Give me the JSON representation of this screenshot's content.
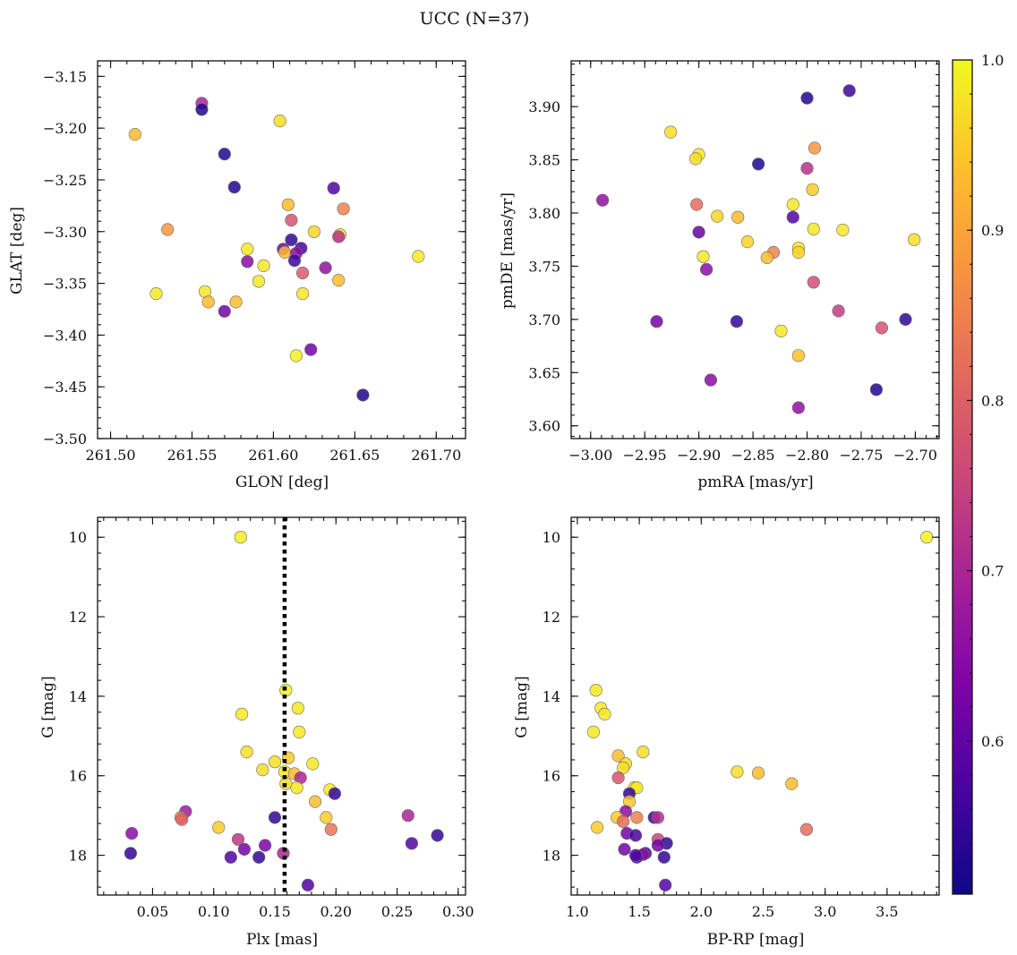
{
  "chart_data": {
    "title": "UCC (N=37)",
    "type": "scatter",
    "colorscale": "plasma",
    "colorbar": {
      "range": [
        0.51,
        1.0
      ],
      "ticks": [
        "0.6",
        "0.7",
        "0.8",
        "0.9",
        "1.0"
      ]
    },
    "panels": [
      {
        "id": "glon-glat",
        "type": "scatter",
        "xlabel": "GLON [deg]",
        "ylabel": "GLAT [deg]",
        "xlim": [
          261.492,
          261.718
        ],
        "ylim": [
          -3.5,
          -3.135
        ],
        "xticks": [
          261.5,
          261.55,
          261.6,
          261.65,
          261.7
        ],
        "xticklabels": [
          "261.50",
          "261.55",
          "261.60",
          "261.65",
          "261.70"
        ],
        "yticks": [
          -3.5,
          -3.45,
          -3.4,
          -3.35,
          -3.3,
          -3.25,
          -3.2,
          -3.15
        ],
        "yticklabels": [
          "−3.50",
          "−3.45",
          "−3.40",
          "−3.35",
          "−3.30",
          "−3.25",
          "−3.20",
          "−3.15"
        ],
        "invert_y": false,
        "points": [
          {
            "x": 261.515,
            "y": -3.206,
            "c": 0.93
          },
          {
            "x": 261.556,
            "y": -3.176,
            "c": 0.7
          },
          {
            "x": 261.556,
            "y": -3.182,
            "c": 0.53
          },
          {
            "x": 261.604,
            "y": -3.193,
            "c": 0.97
          },
          {
            "x": 261.57,
            "y": -3.225,
            "c": 0.53
          },
          {
            "x": 261.576,
            "y": -3.257,
            "c": 0.53
          },
          {
            "x": 261.637,
            "y": -3.258,
            "c": 0.58
          },
          {
            "x": 261.609,
            "y": -3.274,
            "c": 0.93
          },
          {
            "x": 261.643,
            "y": -3.278,
            "c": 0.85
          },
          {
            "x": 261.611,
            "y": -3.289,
            "c": 0.78
          },
          {
            "x": 261.535,
            "y": -3.298,
            "c": 0.88
          },
          {
            "x": 261.625,
            "y": -3.3,
            "c": 0.96
          },
          {
            "x": 261.641,
            "y": -3.303,
            "c": 0.98
          },
          {
            "x": 261.64,
            "y": -3.305,
            "c": 0.72
          },
          {
            "x": 261.611,
            "y": -3.308,
            "c": 0.55
          },
          {
            "x": 261.606,
            "y": -3.317,
            "c": 0.62
          },
          {
            "x": 261.617,
            "y": -3.316,
            "c": 0.57
          },
          {
            "x": 261.584,
            "y": -3.317,
            "c": 0.98
          },
          {
            "x": 261.607,
            "y": -3.32,
            "c": 0.93
          },
          {
            "x": 261.614,
            "y": -3.321,
            "c": 0.65
          },
          {
            "x": 261.613,
            "y": -3.328,
            "c": 0.56
          },
          {
            "x": 261.584,
            "y": -3.329,
            "c": 0.65
          },
          {
            "x": 261.594,
            "y": -3.333,
            "c": 0.98
          },
          {
            "x": 261.632,
            "y": -3.335,
            "c": 0.66
          },
          {
            "x": 261.618,
            "y": -3.34,
            "c": 0.79
          },
          {
            "x": 261.591,
            "y": -3.348,
            "c": 0.98
          },
          {
            "x": 261.64,
            "y": -3.347,
            "c": 0.93
          },
          {
            "x": 261.558,
            "y": -3.358,
            "c": 0.98
          },
          {
            "x": 261.528,
            "y": -3.36,
            "c": 0.98
          },
          {
            "x": 261.618,
            "y": -3.36,
            "c": 0.98
          },
          {
            "x": 261.56,
            "y": -3.368,
            "c": 0.93
          },
          {
            "x": 261.577,
            "y": -3.368,
            "c": 0.93
          },
          {
            "x": 261.57,
            "y": -3.377,
            "c": 0.62
          },
          {
            "x": 261.623,
            "y": -3.414,
            "c": 0.62
          },
          {
            "x": 261.614,
            "y": -3.42,
            "c": 0.99
          },
          {
            "x": 261.655,
            "y": -3.458,
            "c": 0.53
          },
          {
            "x": 261.689,
            "y": -3.324,
            "c": 0.98
          }
        ]
      },
      {
        "id": "pmra-pmde",
        "type": "scatter",
        "xlabel": "pmRA [mas/yr]",
        "ylabel": "pmDE [mas/yr]",
        "xlim": [
          -3.018,
          -2.678
        ],
        "ylim": [
          3.588,
          3.943
        ],
        "xticks": [
          -3.0,
          -2.95,
          -2.9,
          -2.85,
          -2.8,
          -2.75,
          -2.7
        ],
        "xticklabels": [
          "−3.00",
          "−2.95",
          "−2.90",
          "−2.85",
          "−2.80",
          "−2.75",
          "−2.70"
        ],
        "yticks": [
          3.6,
          3.65,
          3.7,
          3.75,
          3.8,
          3.85,
          3.9
        ],
        "yticklabels": [
          "3.60",
          "3.65",
          "3.70",
          "3.75",
          "3.80",
          "3.85",
          "3.90"
        ],
        "invert_y": false,
        "points": [
          {
            "x": -2.8,
            "y": 3.908,
            "c": 0.53
          },
          {
            "x": -2.761,
            "y": 3.915,
            "c": 0.56
          },
          {
            "x": -2.926,
            "y": 3.876,
            "c": 0.97
          },
          {
            "x": -2.793,
            "y": 3.861,
            "c": 0.88
          },
          {
            "x": -2.9,
            "y": 3.855,
            "c": 0.98
          },
          {
            "x": -2.903,
            "y": 3.851,
            "c": 0.97
          },
          {
            "x": -2.845,
            "y": 3.846,
            "c": 0.53
          },
          {
            "x": -2.8,
            "y": 3.842,
            "c": 0.72
          },
          {
            "x": -2.795,
            "y": 3.822,
            "c": 0.95
          },
          {
            "x": -2.989,
            "y": 3.812,
            "c": 0.66
          },
          {
            "x": -2.902,
            "y": 3.808,
            "c": 0.82
          },
          {
            "x": -2.813,
            "y": 3.808,
            "c": 0.98
          },
          {
            "x": -2.883,
            "y": 3.797,
            "c": 0.96
          },
          {
            "x": -2.864,
            "y": 3.796,
            "c": 0.93
          },
          {
            "x": -2.813,
            "y": 3.796,
            "c": 0.58
          },
          {
            "x": -2.794,
            "y": 3.785,
            "c": 0.98
          },
          {
            "x": -2.767,
            "y": 3.784,
            "c": 0.98
          },
          {
            "x": -2.9,
            "y": 3.782,
            "c": 0.6
          },
          {
            "x": -2.701,
            "y": 3.775,
            "c": 0.97
          },
          {
            "x": -2.855,
            "y": 3.773,
            "c": 0.96
          },
          {
            "x": -2.808,
            "y": 3.767,
            "c": 0.98
          },
          {
            "x": -2.831,
            "y": 3.763,
            "c": 0.85
          },
          {
            "x": -2.808,
            "y": 3.763,
            "c": 0.96
          },
          {
            "x": -2.896,
            "y": 3.759,
            "c": 0.98
          },
          {
            "x": -2.837,
            "y": 3.758,
            "c": 0.93
          },
          {
            "x": -2.893,
            "y": 3.747,
            "c": 0.65
          },
          {
            "x": -2.794,
            "y": 3.735,
            "c": 0.77
          },
          {
            "x": -2.771,
            "y": 3.708,
            "c": 0.74
          },
          {
            "x": -2.939,
            "y": 3.698,
            "c": 0.62
          },
          {
            "x": -2.865,
            "y": 3.698,
            "c": 0.55
          },
          {
            "x": -2.709,
            "y": 3.7,
            "c": 0.55
          },
          {
            "x": -2.731,
            "y": 3.692,
            "c": 0.78
          },
          {
            "x": -2.824,
            "y": 3.689,
            "c": 0.98
          },
          {
            "x": -2.808,
            "y": 3.666,
            "c": 0.94
          },
          {
            "x": -2.889,
            "y": 3.643,
            "c": 0.65
          },
          {
            "x": -2.736,
            "y": 3.634,
            "c": 0.53
          },
          {
            "x": -2.808,
            "y": 3.617,
            "c": 0.66
          }
        ]
      },
      {
        "id": "plx-g",
        "type": "scatter",
        "xlabel": "Plx [mas]",
        "ylabel": "G [mag]",
        "xlim": [
          0.005,
          0.306
        ],
        "ylim": [
          9.5,
          19.0
        ],
        "xticks": [
          0.05,
          0.1,
          0.15,
          0.2,
          0.25,
          0.3
        ],
        "xticklabels": [
          "0.05",
          "0.10",
          "0.15",
          "0.20",
          "0.25",
          "0.30"
        ],
        "yticks": [
          10,
          12,
          14,
          16,
          18
        ],
        "yticklabels": [
          "10",
          "12",
          "14",
          "16",
          "18"
        ],
        "invert_y": true,
        "vline": {
          "x": 0.158,
          "style": "dotted"
        },
        "points": [
          {
            "x": 0.122,
            "y": 10.0,
            "c": 0.99
          },
          {
            "x": 0.123,
            "y": 14.45,
            "c": 0.98
          },
          {
            "x": 0.159,
            "y": 13.85,
            "c": 0.99
          },
          {
            "x": 0.169,
            "y": 14.3,
            "c": 0.98
          },
          {
            "x": 0.17,
            "y": 14.9,
            "c": 0.98
          },
          {
            "x": 0.127,
            "y": 15.4,
            "c": 0.97
          },
          {
            "x": 0.161,
            "y": 15.55,
            "c": 0.95
          },
          {
            "x": 0.15,
            "y": 15.65,
            "c": 0.97
          },
          {
            "x": 0.181,
            "y": 15.7,
            "c": 0.98
          },
          {
            "x": 0.14,
            "y": 15.85,
            "c": 0.97
          },
          {
            "x": 0.158,
            "y": 15.9,
            "c": 0.98
          },
          {
            "x": 0.166,
            "y": 15.95,
            "c": 0.93
          },
          {
            "x": 0.171,
            "y": 16.05,
            "c": 0.7
          },
          {
            "x": 0.159,
            "y": 16.2,
            "c": 0.97
          },
          {
            "x": 0.168,
            "y": 16.3,
            "c": 0.98
          },
          {
            "x": 0.195,
            "y": 16.35,
            "c": 0.98
          },
          {
            "x": 0.199,
            "y": 16.45,
            "c": 0.55
          },
          {
            "x": 0.183,
            "y": 16.65,
            "c": 0.93
          },
          {
            "x": 0.077,
            "y": 16.9,
            "c": 0.68
          },
          {
            "x": 0.259,
            "y": 17.0,
            "c": 0.7
          },
          {
            "x": 0.073,
            "y": 17.05,
            "c": 0.85
          },
          {
            "x": 0.074,
            "y": 17.1,
            "c": 0.8
          },
          {
            "x": 0.15,
            "y": 17.05,
            "c": 0.55
          },
          {
            "x": 0.192,
            "y": 17.05,
            "c": 0.95
          },
          {
            "x": 0.104,
            "y": 17.3,
            "c": 0.95
          },
          {
            "x": 0.196,
            "y": 17.35,
            "c": 0.83
          },
          {
            "x": 0.033,
            "y": 17.45,
            "c": 0.65
          },
          {
            "x": 0.283,
            "y": 17.5,
            "c": 0.55
          },
          {
            "x": 0.12,
            "y": 17.6,
            "c": 0.73
          },
          {
            "x": 0.262,
            "y": 17.7,
            "c": 0.58
          },
          {
            "x": 0.142,
            "y": 17.75,
            "c": 0.63
          },
          {
            "x": 0.125,
            "y": 17.85,
            "c": 0.62
          },
          {
            "x": 0.157,
            "y": 17.95,
            "c": 0.7
          },
          {
            "x": 0.032,
            "y": 17.95,
            "c": 0.55
          },
          {
            "x": 0.114,
            "y": 18.05,
            "c": 0.58
          },
          {
            "x": 0.137,
            "y": 18.05,
            "c": 0.55
          },
          {
            "x": 0.177,
            "y": 18.75,
            "c": 0.58
          }
        ]
      },
      {
        "id": "bprp-g",
        "type": "scatter",
        "xlabel": "BP-RP [mag]",
        "ylabel": "G [mag]",
        "xlim": [
          0.95,
          3.92
        ],
        "ylim": [
          9.5,
          19.0
        ],
        "xticks": [
          1.0,
          1.5,
          2.0,
          2.5,
          3.0,
          3.5
        ],
        "xticklabels": [
          "1.0",
          "1.5",
          "2.0",
          "2.5",
          "3.0",
          "3.5"
        ],
        "yticks": [
          10,
          12,
          14,
          16,
          18
        ],
        "yticklabels": [
          "10",
          "12",
          "14",
          "16",
          "18"
        ],
        "invert_y": true,
        "points": [
          {
            "x": 3.82,
            "y": 10.0,
            "c": 0.99
          },
          {
            "x": 1.15,
            "y": 13.85,
            "c": 0.98
          },
          {
            "x": 1.19,
            "y": 14.3,
            "c": 0.98
          },
          {
            "x": 1.22,
            "y": 14.45,
            "c": 0.98
          },
          {
            "x": 1.13,
            "y": 14.9,
            "c": 0.98
          },
          {
            "x": 1.53,
            "y": 15.4,
            "c": 0.97
          },
          {
            "x": 1.33,
            "y": 15.5,
            "c": 0.93
          },
          {
            "x": 1.39,
            "y": 15.7,
            "c": 0.97
          },
          {
            "x": 1.37,
            "y": 15.8,
            "c": 0.97
          },
          {
            "x": 2.29,
            "y": 15.9,
            "c": 0.97
          },
          {
            "x": 2.46,
            "y": 15.93,
            "c": 0.93
          },
          {
            "x": 1.33,
            "y": 16.05,
            "c": 0.78
          },
          {
            "x": 2.73,
            "y": 16.2,
            "c": 0.93
          },
          {
            "x": 1.46,
            "y": 16.3,
            "c": 0.98
          },
          {
            "x": 1.48,
            "y": 16.3,
            "c": 0.98
          },
          {
            "x": 1.42,
            "y": 16.45,
            "c": 0.55
          },
          {
            "x": 1.42,
            "y": 16.65,
            "c": 0.95
          },
          {
            "x": 1.39,
            "y": 16.9,
            "c": 0.65
          },
          {
            "x": 1.32,
            "y": 17.05,
            "c": 0.95
          },
          {
            "x": 1.48,
            "y": 17.05,
            "c": 0.85
          },
          {
            "x": 1.62,
            "y": 17.05,
            "c": 0.55
          },
          {
            "x": 1.65,
            "y": 17.05,
            "c": 0.72
          },
          {
            "x": 1.37,
            "y": 17.15,
            "c": 0.82
          },
          {
            "x": 1.16,
            "y": 17.3,
            "c": 0.95
          },
          {
            "x": 2.85,
            "y": 17.35,
            "c": 0.82
          },
          {
            "x": 1.4,
            "y": 17.45,
            "c": 0.62
          },
          {
            "x": 1.47,
            "y": 17.5,
            "c": 0.57
          },
          {
            "x": 1.65,
            "y": 17.6,
            "c": 0.75
          },
          {
            "x": 1.72,
            "y": 17.7,
            "c": 0.55
          },
          {
            "x": 1.65,
            "y": 17.75,
            "c": 0.62
          },
          {
            "x": 1.38,
            "y": 17.85,
            "c": 0.62
          },
          {
            "x": 1.55,
            "y": 17.95,
            "c": 0.58
          },
          {
            "x": 1.53,
            "y": 17.98,
            "c": 0.65
          },
          {
            "x": 1.48,
            "y": 18.05,
            "c": 0.58
          },
          {
            "x": 1.7,
            "y": 18.05,
            "c": 0.55
          },
          {
            "x": 1.71,
            "y": 18.75,
            "c": 0.58
          },
          {
            "x": 1.47,
            "y": 18.0,
            "c": 0.58
          }
        ]
      }
    ]
  }
}
